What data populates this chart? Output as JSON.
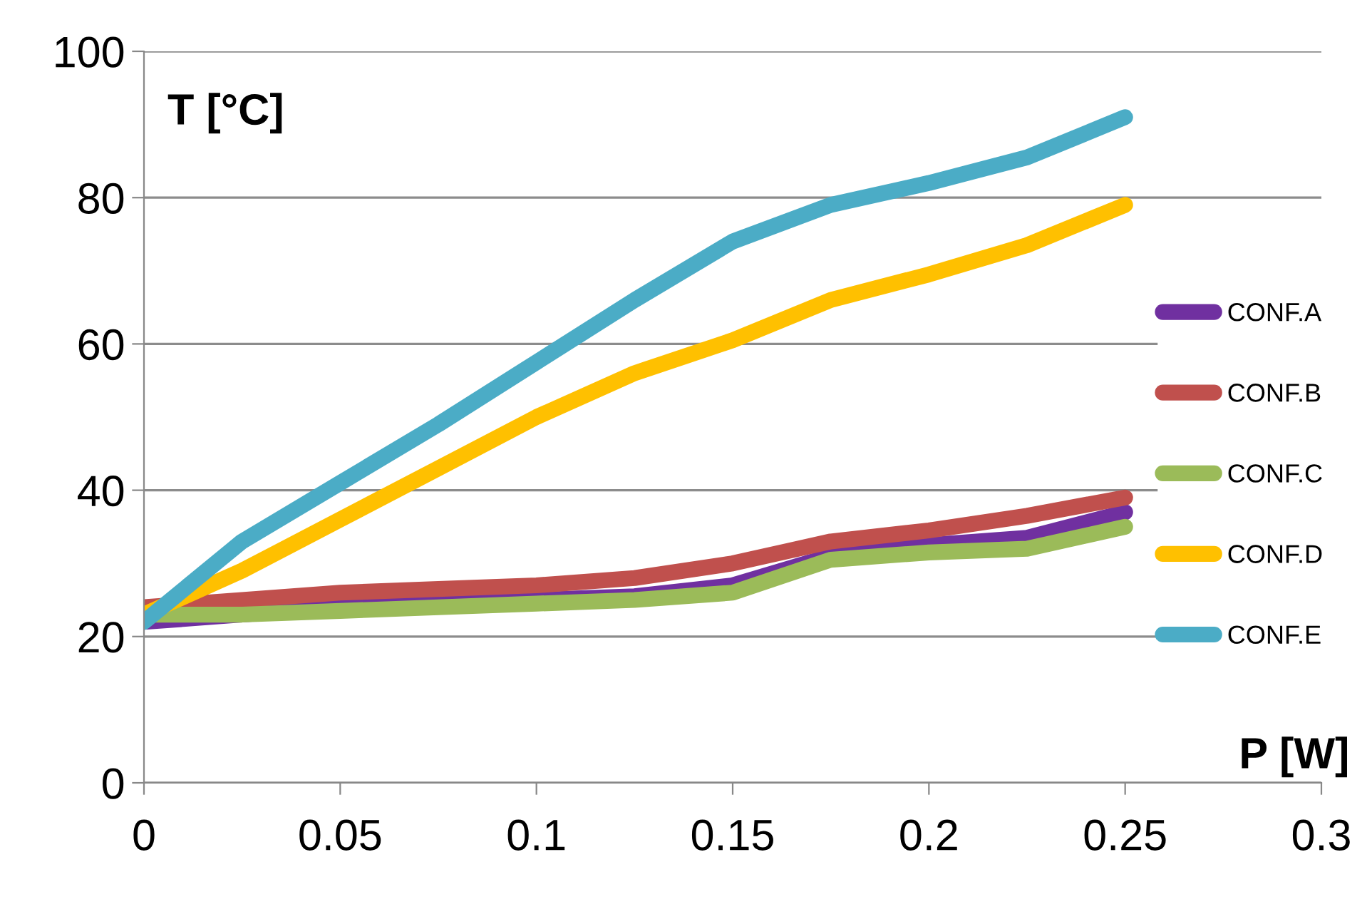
{
  "chart_data": {
    "type": "line",
    "xlabel": "P [W]",
    "ylabel": "T [°C]",
    "x": [
      0,
      0.025,
      0.05,
      0.075,
      0.1,
      0.125,
      0.15,
      0.175,
      0.2,
      0.225,
      0.25
    ],
    "series": [
      {
        "name": "CONF.A",
        "color": "#7030a0",
        "values": [
          22,
          23,
          24,
          24.5,
          25,
          25.5,
          27,
          31,
          32.5,
          33.5,
          37
        ]
      },
      {
        "name": "CONF.B",
        "color": "#c0504d",
        "values": [
          24,
          25,
          26,
          26.5,
          27,
          28,
          30,
          33,
          34.5,
          36.5,
          39
        ]
      },
      {
        "name": "CONF.C",
        "color": "#9bbb59",
        "values": [
          23,
          23,
          23.5,
          24,
          24.5,
          25,
          26,
          30.5,
          31.5,
          32,
          35
        ]
      },
      {
        "name": "CONF.D",
        "color": "#ffc000",
        "values": [
          23,
          29,
          36,
          43,
          50,
          56,
          60.5,
          66,
          69.5,
          73.5,
          79
        ]
      },
      {
        "name": "CONF.E",
        "color": "#4bacc6",
        "values": [
          22,
          33,
          41,
          49,
          57.5,
          66,
          74,
          79,
          82,
          85.5,
          91
        ]
      }
    ],
    "xlim": [
      0,
      0.3
    ],
    "xticks": [
      0,
      0.05,
      0.1,
      0.15,
      0.2,
      0.25,
      0.3
    ],
    "ylim": [
      0,
      100
    ],
    "yticks": [
      0,
      20,
      40,
      60,
      80,
      100
    ],
    "grid": "y",
    "legend": "right",
    "line_style": "solid"
  }
}
